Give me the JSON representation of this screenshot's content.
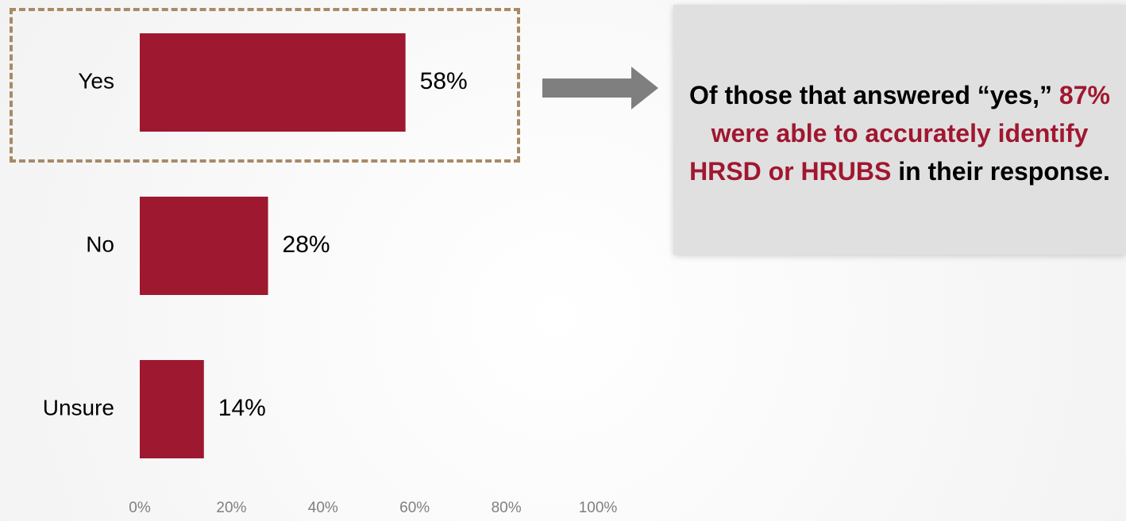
{
  "chart_data": {
    "type": "bar",
    "orientation": "horizontal",
    "categories": [
      "Yes",
      "No",
      "Unsure"
    ],
    "values": [
      58,
      28,
      14
    ],
    "value_labels": [
      "58%",
      "28%",
      "14%"
    ],
    "xlim": [
      0,
      100
    ],
    "x_ticks": [
      "0%",
      "20%",
      "40%",
      "60%",
      "80%",
      "100%"
    ],
    "grid": false,
    "bar_color": "#9e1830",
    "highlighted_category": "Yes"
  },
  "callout": {
    "part1": "Of those that answered “yes,”",
    "part2": "87% were able to accurately identify HRSD or HRUBS",
    "part3": " in their response.",
    "highlight_color": "#a01730"
  },
  "colors": {
    "bar": "#9e1830",
    "highlight_border": "#a88a66",
    "arrow": "#7f7f7f",
    "callout_bg": "#e0e0e0"
  }
}
